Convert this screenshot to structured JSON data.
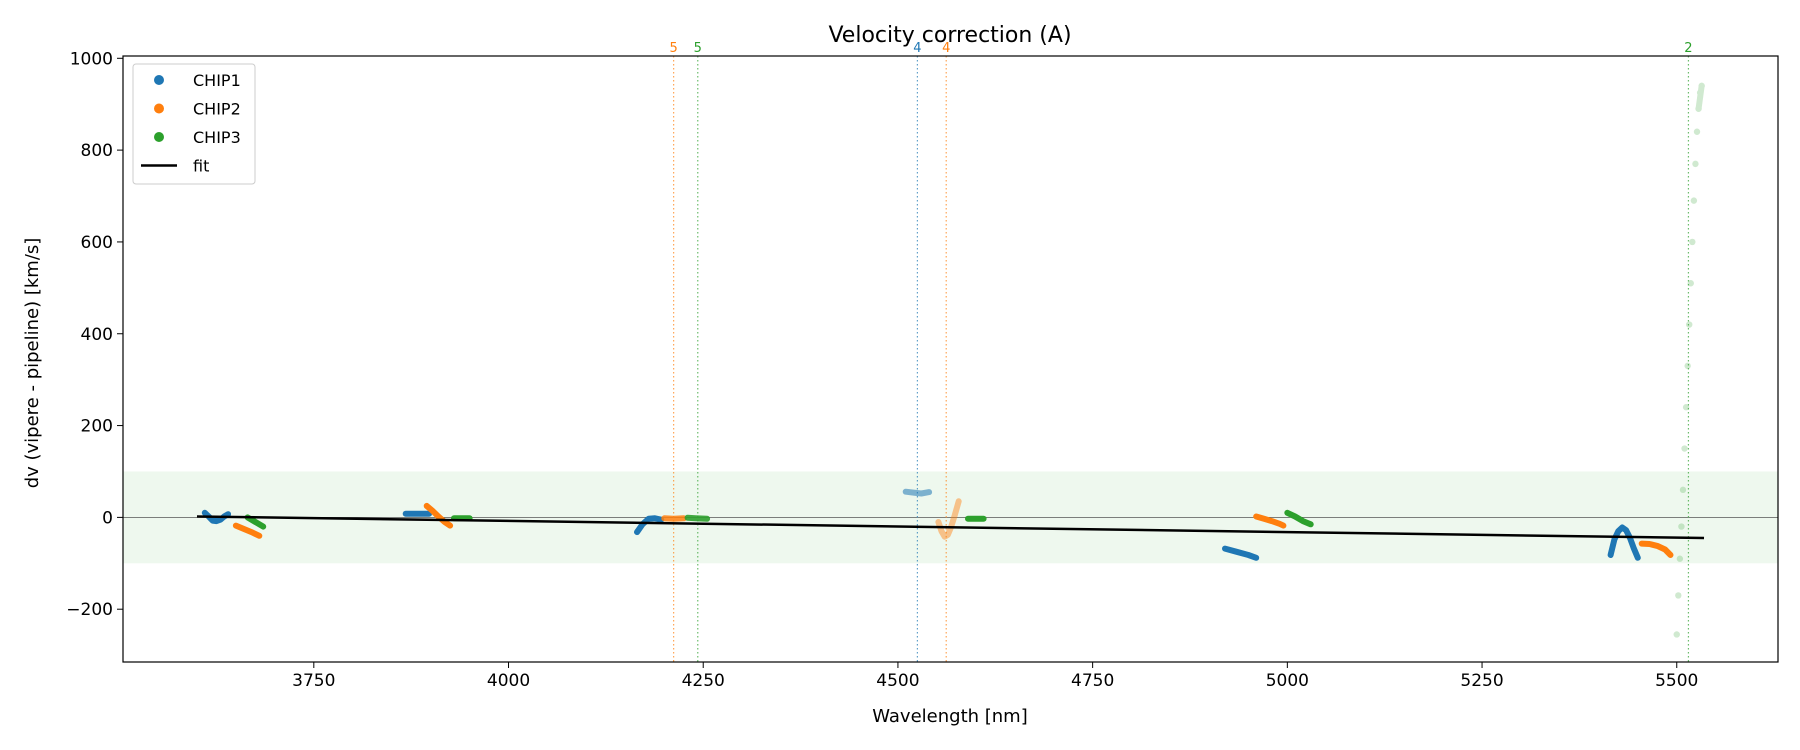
{
  "chart_data": {
    "type": "scatter",
    "title": "Velocity correction (A)",
    "xlabel": "Wavelength [nm]",
    "ylabel": "dv (vipere - pipeline) [km/s]",
    "xlim": [
      3505,
      5630
    ],
    "ylim": [
      -315,
      1005
    ],
    "xticks": [
      3750,
      4000,
      4250,
      4500,
      4750,
      5000,
      5250,
      5500
    ],
    "yticks": [
      -200,
      0,
      200,
      400,
      600,
      800,
      1000
    ],
    "band": {
      "from": -100,
      "to": 100,
      "color": "#2ca02c"
    },
    "zero_line": 0,
    "legend": {
      "position": "top-left",
      "entries": [
        {
          "label": "CHIP1",
          "kind": "marker",
          "color": "#1f77b4"
        },
        {
          "label": "CHIP2",
          "kind": "marker",
          "color": "#ff7f0e"
        },
        {
          "label": "CHIP3",
          "kind": "marker",
          "color": "#2ca02c"
        },
        {
          "label": "fit",
          "kind": "line",
          "color": "#000000"
        }
      ]
    },
    "fit": {
      "x": [
        3600,
        5535
      ],
      "y": [
        2,
        -45
      ],
      "color": "#000000"
    },
    "markers": [
      {
        "x": 4212,
        "label": "5",
        "color": "#ff7f0e"
      },
      {
        "x": 4243,
        "label": "5",
        "color": "#2ca02c"
      },
      {
        "x": 4525,
        "label": "4",
        "color": "#1f77b4"
      },
      {
        "x": 4562,
        "label": "4",
        "color": "#ff7f0e"
      },
      {
        "x": 5515,
        "label": "2",
        "color": "#2ca02c"
      }
    ],
    "series": [
      {
        "name": "CHIP1",
        "color": "#1f77b4",
        "segments": [
          {
            "x": [
              3610,
              3615,
              3620,
              3625,
              3630,
              3635,
              3640
            ],
            "y": [
              10,
              2,
              -7,
              -8,
              -5,
              2,
              7
            ],
            "opacity": 1
          },
          {
            "x": [
              3868,
              3878,
              3888,
              3898
            ],
            "y": [
              8,
              8,
              8,
              8
            ],
            "opacity": 1
          },
          {
            "x": [
              4165,
              4172,
              4180,
              4188,
              4196
            ],
            "y": [
              -32,
              -15,
              -3,
              -2,
              -5
            ],
            "opacity": 1
          },
          {
            "x": [
              4510,
              4520,
              4530,
              4540
            ],
            "y": [
              56,
              54,
              52,
              55
            ],
            "opacity": 0.55
          },
          {
            "x": [
              4920,
              4935,
              4950,
              4960
            ],
            "y": [
              -68,
              -75,
              -82,
              -88
            ],
            "opacity": 1
          },
          {
            "x": [
              5415,
              5420,
              5425,
              5430,
              5435,
              5440,
              5445,
              5450
            ],
            "y": [
              -82,
              -48,
              -30,
              -22,
              -28,
              -45,
              -68,
              -88
            ],
            "opacity": 1
          }
        ]
      },
      {
        "name": "CHIP2",
        "color": "#ff7f0e",
        "segments": [
          {
            "x": [
              3650,
              3660,
              3670,
              3680
            ],
            "y": [
              -18,
              -25,
              -32,
              -40
            ],
            "opacity": 1
          },
          {
            "x": [
              3895,
              3902,
              3910,
              3918,
              3925
            ],
            "y": [
              25,
              15,
              2,
              -10,
              -18
            ],
            "opacity": 1
          },
          {
            "x": [
              4200,
              4212,
              4225
            ],
            "y": [
              -2,
              -3,
              -2
            ],
            "opacity": 0.85
          },
          {
            "x": [
              4552,
              4556,
              4560,
              4564,
              4568,
              4573,
              4578
            ],
            "y": [
              -10,
              -30,
              -42,
              -38,
              -22,
              5,
              35
            ],
            "opacity": 0.45
          },
          {
            "x": [
              4960,
              4970,
              4980,
              4990,
              4995
            ],
            "y": [
              2,
              -3,
              -8,
              -14,
              -18
            ],
            "opacity": 1
          },
          {
            "x": [
              5455,
              5465,
              5475,
              5485,
              5492
            ],
            "y": [
              -57,
              -58,
              -62,
              -70,
              -82
            ],
            "opacity": 1
          }
        ]
      },
      {
        "name": "CHIP3",
        "color": "#2ca02c",
        "segments": [
          {
            "x": [
              3665,
              3675,
              3685
            ],
            "y": [
              0,
              -10,
              -20
            ],
            "opacity": 1
          },
          {
            "x": [
              3930,
              3940,
              3950
            ],
            "y": [
              -2,
              -2,
              -2
            ],
            "opacity": 1
          },
          {
            "x": [
              4230,
              4240,
              4255
            ],
            "y": [
              -1,
              -2,
              -3
            ],
            "opacity": 0.9
          },
          {
            "x": [
              4590,
              4600,
              4610
            ],
            "y": [
              -3,
              -3,
              -3
            ],
            "opacity": 1
          },
          {
            "x": [
              5000,
              5010,
              5020,
              5030
            ],
            "y": [
              10,
              2,
              -8,
              -15
            ],
            "opacity": 1
          },
          {
            "x": [
              5500,
              5502,
              5504,
              5506,
              5508,
              5510,
              5512,
              5514,
              5516,
              5518,
              5520,
              5522,
              5524,
              5526,
              5528,
              5530,
              5532
            ],
            "y": [
              -255,
              -170,
              -90,
              -20,
              60,
              150,
              240,
              330,
              420,
              510,
              600,
              690,
              770,
              840,
              890,
              925,
              940
            ],
            "opacity": 0.22,
            "dotted": true
          }
        ]
      }
    ]
  }
}
